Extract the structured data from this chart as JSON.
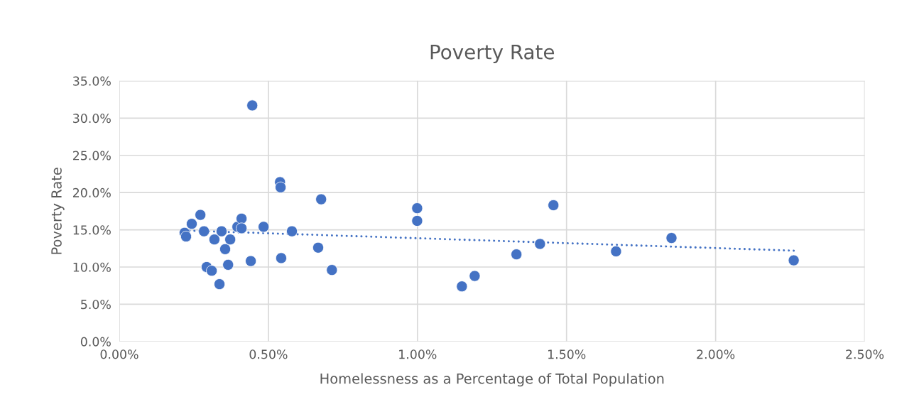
{
  "chart_data": {
    "type": "scatter",
    "title": "Poverty Rate",
    "xlabel": "Homelessness as a Percentage of Total Population",
    "ylabel": "Poverty Rate",
    "x": [
      0.219,
      0.224,
      0.243,
      0.272,
      0.284,
      0.293,
      0.31,
      0.319,
      0.336,
      0.343,
      0.355,
      0.365,
      0.372,
      0.396,
      0.41,
      0.41,
      0.441,
      0.446,
      0.484,
      0.539,
      0.541,
      0.543,
      0.579,
      0.667,
      0.677,
      0.713,
      0.999,
      0.999,
      1.149,
      1.192,
      1.332,
      1.411,
      1.456,
      1.666,
      1.852,
      2.262
    ],
    "series": [
      {
        "color": "#4472c4",
        "marker": "circle",
        "values": [
          14.6,
          14.1,
          15.8,
          17.0,
          14.8,
          10.0,
          9.5,
          13.7,
          7.7,
          14.8,
          12.4,
          10.3,
          13.7,
          15.4,
          16.5,
          15.2,
          10.8,
          31.7,
          15.4,
          21.4,
          20.7,
          11.2,
          14.8,
          12.6,
          19.1,
          9.6,
          17.9,
          16.2,
          7.4,
          8.8,
          11.7,
          13.1,
          18.3,
          12.1,
          13.9,
          10.9
        ]
      },
      {
        "type": "line",
        "color": "#4472c4",
        "line_style": "dotted",
        "x": [
          0.219,
          2.262
        ],
        "values": [
          14.9,
          12.2
        ]
      }
    ],
    "xlim": [
      0,
      2.5
    ],
    "ylim": [
      0,
      35
    ],
    "xticks": [
      {
        "value": 0,
        "label": "0.00%"
      },
      {
        "value": 0.5,
        "label": "0.50%"
      },
      {
        "value": 1,
        "label": "1.00%"
      },
      {
        "value": 1.5,
        "label": "1.50%"
      },
      {
        "value": 2,
        "label": "2.00%"
      },
      {
        "value": 2.5,
        "label": "2.50%"
      }
    ],
    "yticks": [
      {
        "value": 0,
        "label": "0.0%"
      },
      {
        "value": 5,
        "label": "5.0%"
      },
      {
        "value": 10,
        "label": "10.0%"
      },
      {
        "value": 15,
        "label": "15.0%"
      },
      {
        "value": 20,
        "label": "20.0%"
      },
      {
        "value": 25,
        "label": "25.0%"
      },
      {
        "value": 30,
        "label": "30.0%"
      },
      {
        "value": 35,
        "label": "35.0%"
      }
    ],
    "grid": true,
    "legend": false
  }
}
